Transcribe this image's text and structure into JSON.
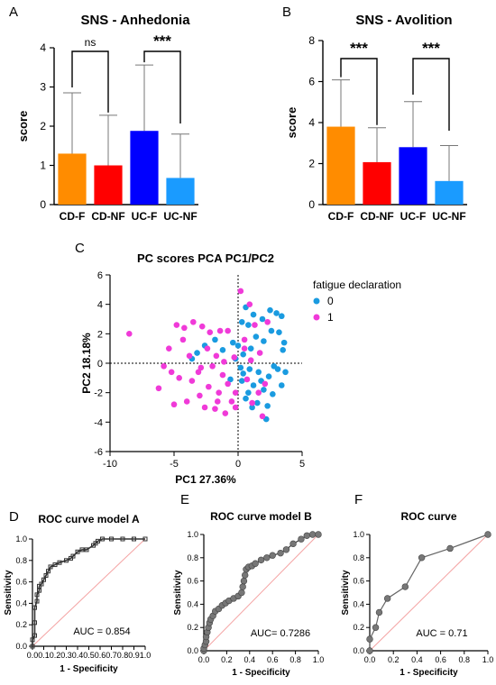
{
  "chart_data": [
    {
      "panel": "A",
      "type": "bar",
      "title": "SNS - Anhedonia",
      "ylabel": "score",
      "xlabel": "",
      "ylim": [
        0,
        4
      ],
      "yticks": [
        "0",
        "1",
        "2",
        "3",
        "4"
      ],
      "categories": [
        "CD-F",
        "CD-NF",
        "UC-F",
        "UC-NF"
      ],
      "values": [
        1.3,
        1.0,
        1.88,
        0.68
      ],
      "errors": [
        1.55,
        1.28,
        1.68,
        1.12
      ],
      "colors": [
        "#ff8c00",
        "#ff0000",
        "#0000ff",
        "#1a9bff"
      ],
      "comparisons": [
        {
          "label": "ns",
          "from": "CD-F",
          "to": "CD-NF"
        },
        {
          "label": "***",
          "from": "UC-F",
          "to": "UC-NF"
        }
      ]
    },
    {
      "panel": "B",
      "type": "bar",
      "title": "SNS - Avolition",
      "ylabel": "score",
      "xlabel": "",
      "ylim": [
        0,
        8
      ],
      "yticks": [
        "0",
        "2",
        "4",
        "6",
        "8"
      ],
      "categories": [
        "CD-F",
        "CD-NF",
        "UC-F",
        "UC-NF"
      ],
      "values": [
        3.8,
        2.07,
        2.8,
        1.15
      ],
      "errors": [
        2.28,
        1.68,
        2.22,
        1.73
      ],
      "colors": [
        "#ff8c00",
        "#ff0000",
        "#0000ff",
        "#1a9bff"
      ],
      "comparisons": [
        {
          "label": "***",
          "from": "CD-F",
          "to": "CD-NF"
        },
        {
          "label": "***",
          "from": "UC-F",
          "to": "UC-NF"
        }
      ]
    },
    {
      "panel": "C",
      "type": "scatter",
      "title": "PC scores PCA PC1/PC2",
      "xlabel": "PC1 27.36%",
      "ylabel": "PC2 18.18%",
      "xlim": [
        -10,
        5
      ],
      "ylim": [
        -6,
        6
      ],
      "xticks": [
        "-10",
        "-5",
        "0",
        "5"
      ],
      "yticks": [
        "-6",
        "-4",
        "-2",
        "0",
        "2",
        "4",
        "6"
      ],
      "legend_title": "fatigue declaration",
      "series": [
        {
          "name": "0",
          "color": "#1a9be0",
          "points": [
            [
              0.3,
              2.8
            ],
            [
              0.8,
              2.6
            ],
            [
              1.2,
              3.3
            ],
            [
              1.9,
              3.0
            ],
            [
              2.5,
              3.6
            ],
            [
              3.0,
              3.4
            ],
            [
              3.4,
              3.2
            ],
            [
              0.6,
              3.8
            ],
            [
              1.4,
              1.8
            ],
            [
              1.0,
              1.0
            ],
            [
              2.0,
              1.5
            ],
            [
              2.6,
              2.2
            ],
            [
              3.2,
              2.1
            ],
            [
              3.6,
              1.4
            ],
            [
              0.4,
              0.6
            ],
            [
              0.0,
              1.2
            ],
            [
              -0.4,
              1.4
            ],
            [
              -1.2,
              0.9
            ],
            [
              -1.8,
              1.6
            ],
            [
              -2.6,
              1.2
            ],
            [
              -3.2,
              0.7
            ],
            [
              -3.6,
              0.3
            ],
            [
              -0.2,
              0.3
            ],
            [
              0.2,
              -0.3
            ],
            [
              0.9,
              -0.4
            ],
            [
              1.6,
              -0.6
            ],
            [
              2.4,
              -0.9
            ],
            [
              3.1,
              -0.4
            ],
            [
              3.7,
              -0.6
            ],
            [
              0.3,
              -1.2
            ],
            [
              1.2,
              -1.5
            ],
            [
              2.0,
              -1.8
            ],
            [
              2.7,
              -2.1
            ],
            [
              3.4,
              -1.5
            ],
            [
              0.6,
              -2.4
            ],
            [
              1.5,
              -2.7
            ],
            [
              2.3,
              -2.9
            ],
            [
              1.1,
              -3.0
            ],
            [
              2.2,
              -3.8
            ],
            [
              0.8,
              -2.0
            ],
            [
              1.8,
              -1.2
            ],
            [
              2.8,
              -0.2
            ],
            [
              3.5,
              0.9
            ],
            [
              -0.6,
              -1.1
            ],
            [
              0.4,
              -0.7
            ]
          ]
        },
        {
          "name": "1",
          "color": "#f03ad8",
          "points": [
            [
              -8.5,
              2.0
            ],
            [
              -5.8,
              -0.2
            ],
            [
              -6.2,
              -1.7
            ],
            [
              -5.2,
              -0.6
            ],
            [
              -4.8,
              2.6
            ],
            [
              -4.2,
              2.4
            ],
            [
              -3.5,
              2.8
            ],
            [
              -2.8,
              2.5
            ],
            [
              -2.2,
              2.1
            ],
            [
              -1.4,
              2.2
            ],
            [
              -0.8,
              2.2
            ],
            [
              -5.0,
              -2.8
            ],
            [
              -4.6,
              -1.0
            ],
            [
              -4.0,
              -2.6
            ],
            [
              -3.6,
              -1.2
            ],
            [
              -3.1,
              -0.6
            ],
            [
              -3.0,
              -2.2
            ],
            [
              -2.6,
              -3.0
            ],
            [
              -2.3,
              -1.6
            ],
            [
              -2.0,
              -0.2
            ],
            [
              -1.8,
              -3.1
            ],
            [
              -1.5,
              -2.0
            ],
            [
              -1.2,
              -0.8
            ],
            [
              -1.0,
              -3.4
            ],
            [
              -0.8,
              -1.4
            ],
            [
              -0.5,
              -2.6
            ],
            [
              -0.2,
              -3.0
            ],
            [
              -2.9,
              -0.3
            ],
            [
              -3.8,
              0.5
            ],
            [
              -4.3,
              1.6
            ],
            [
              -5.4,
              1.0
            ],
            [
              -1.7,
              0.5
            ],
            [
              -1.1,
              0.1
            ],
            [
              0.2,
              4.9
            ],
            [
              0.5,
              1.6
            ],
            [
              0.9,
              4.0
            ],
            [
              1.3,
              2.6
            ],
            [
              1.7,
              0.7
            ],
            [
              2.1,
              -1.4
            ],
            [
              2.3,
              2.8
            ],
            [
              1.6,
              -2.0
            ],
            [
              1.9,
              -3.6
            ],
            [
              1.1,
              -2.7
            ],
            [
              0.7,
              -1.1
            ],
            [
              0.5,
              1.0
            ],
            [
              1.0,
              0.2
            ],
            [
              -0.2,
              -2.0
            ],
            [
              -0.3,
              0.4
            ],
            [
              -1.6,
              -2.6
            ],
            [
              -2.4,
              1.0
            ]
          ]
        }
      ]
    },
    {
      "panel": "D",
      "type": "line",
      "title": "ROC curve model A",
      "xlabel": "1 - Specificity",
      "ylabel": "Sensitivity",
      "xlim": [
        0,
        1
      ],
      "ylim": [
        0,
        1
      ],
      "xticks": [
        "0.0",
        "0.1",
        "0.2",
        "0.3",
        "0.4",
        "0.5",
        "0.6",
        "0.7",
        "0.8",
        "0.9",
        "1.0"
      ],
      "yticks": [
        "0.0",
        "0.2",
        "0.4",
        "0.6",
        "0.8",
        "1.0"
      ],
      "annotation": "AUC = 0.854",
      "series": [
        {
          "name": "",
          "color": "#333333",
          "points": [
            [
              0,
              0
            ],
            [
              0,
              0.06
            ],
            [
              0.02,
              0.1
            ],
            [
              0.02,
              0.22
            ],
            [
              0.02,
              0.36
            ],
            [
              0.04,
              0.42
            ],
            [
              0.04,
              0.48
            ],
            [
              0.06,
              0.52
            ],
            [
              0.06,
              0.56
            ],
            [
              0.08,
              0.58
            ],
            [
              0.1,
              0.62
            ],
            [
              0.12,
              0.66
            ],
            [
              0.14,
              0.7
            ],
            [
              0.16,
              0.74
            ],
            [
              0.2,
              0.76
            ],
            [
              0.24,
              0.78
            ],
            [
              0.3,
              0.8
            ],
            [
              0.34,
              0.82
            ],
            [
              0.36,
              0.84
            ],
            [
              0.4,
              0.88
            ],
            [
              0.44,
              0.9
            ],
            [
              0.48,
              0.9
            ],
            [
              0.54,
              0.94
            ],
            [
              0.56,
              0.96
            ],
            [
              0.58,
              0.98
            ],
            [
              0.62,
              1.0
            ],
            [
              0.7,
              1.0
            ],
            [
              0.8,
              1.0
            ],
            [
              0.9,
              1.0
            ],
            [
              1.0,
              1.0
            ]
          ]
        }
      ]
    },
    {
      "panel": "E",
      "type": "line",
      "title": "ROC curve model B",
      "xlabel": "1 - Specificity",
      "ylabel": "Sensitivity",
      "xlim": [
        0,
        1
      ],
      "ylim": [
        0,
        1
      ],
      "xticks": [
        "0.0",
        "0.2",
        "0.4",
        "0.6",
        "0.8",
        "1.0"
      ],
      "yticks": [
        "0.0",
        "0.2",
        "0.4",
        "0.6",
        "0.8",
        "1.0"
      ],
      "annotation": "AUC= 0.7286",
      "series": [
        {
          "name": "",
          "color": "#333333",
          "points": [
            [
              0,
              0
            ],
            [
              0,
              0.02
            ],
            [
              0.01,
              0.05
            ],
            [
              0.02,
              0.08
            ],
            [
              0.02,
              0.12
            ],
            [
              0.03,
              0.16
            ],
            [
              0.04,
              0.2
            ],
            [
              0.05,
              0.24
            ],
            [
              0.06,
              0.27
            ],
            [
              0.08,
              0.3
            ],
            [
              0.1,
              0.34
            ],
            [
              0.13,
              0.36
            ],
            [
              0.16,
              0.39
            ],
            [
              0.19,
              0.41
            ],
            [
              0.22,
              0.43
            ],
            [
              0.26,
              0.45
            ],
            [
              0.3,
              0.47
            ],
            [
              0.33,
              0.5
            ],
            [
              0.34,
              0.55
            ],
            [
              0.35,
              0.6
            ],
            [
              0.36,
              0.65
            ],
            [
              0.37,
              0.7
            ],
            [
              0.39,
              0.72
            ],
            [
              0.42,
              0.73
            ],
            [
              0.45,
              0.75
            ],
            [
              0.5,
              0.78
            ],
            [
              0.55,
              0.8
            ],
            [
              0.6,
              0.82
            ],
            [
              0.67,
              0.84
            ],
            [
              0.72,
              0.87
            ],
            [
              0.78,
              0.92
            ],
            [
              0.85,
              0.96
            ],
            [
              0.9,
              0.99
            ],
            [
              0.95,
              1.0
            ],
            [
              1.0,
              1.0
            ]
          ]
        }
      ]
    },
    {
      "panel": "F",
      "type": "line",
      "title": "ROC curve",
      "xlabel": "1 - Specificity",
      "ylabel": "Sensitivity",
      "xlim": [
        0,
        1
      ],
      "ylim": [
        0,
        1
      ],
      "xticks": [
        "0.0",
        "0.2",
        "0.4",
        "0.6",
        "0.8",
        "1.0"
      ],
      "yticks": [
        "0.0",
        "0.2",
        "0.4",
        "0.6",
        "0.8",
        "1.0"
      ],
      "annotation": "AUC = 0.71",
      "series": [
        {
          "name": "",
          "color": "#666666",
          "points": [
            [
              0,
              0
            ],
            [
              0,
              0.1
            ],
            [
              0.05,
              0.2
            ],
            [
              0.08,
              0.33
            ],
            [
              0.15,
              0.45
            ],
            [
              0.3,
              0.55
            ],
            [
              0.44,
              0.8
            ],
            [
              0.68,
              0.88
            ],
            [
              1.0,
              1.0
            ]
          ]
        }
      ]
    }
  ]
}
